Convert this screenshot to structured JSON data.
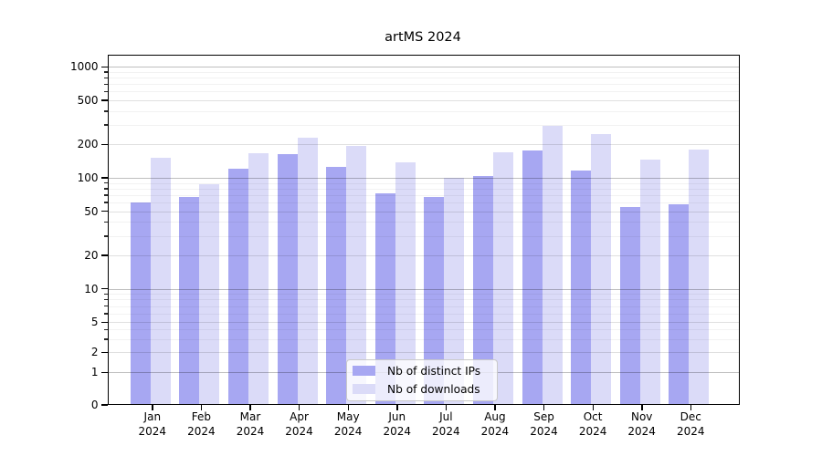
{
  "chart_data": {
    "type": "bar",
    "title": "artMS 2024",
    "categories": [
      "Jan",
      "Feb",
      "Mar",
      "Apr",
      "May",
      "Jun",
      "Jul",
      "Aug",
      "Sep",
      "Oct",
      "Nov",
      "Dec"
    ],
    "year": "2024",
    "series": [
      {
        "name": "Nb of distinct IPs",
        "color": "#a7a7f2",
        "values": [
          60,
          67,
          120,
          165,
          126,
          72,
          67,
          104,
          175,
          117,
          55,
          58
        ]
      },
      {
        "name": "Nb of downloads",
        "color": "#dbdbf8",
        "values": [
          151,
          87,
          168,
          230,
          194,
          139,
          100,
          171,
          292,
          246,
          146,
          180
        ]
      }
    ],
    "y_ticks": [
      0,
      1,
      2,
      5,
      10,
      20,
      50,
      100,
      200,
      500,
      1000
    ],
    "ylim": [
      0,
      1300
    ],
    "yscale": "symlog",
    "grid": "horizontal-major-and-minor",
    "legend_position": "lower center"
  }
}
